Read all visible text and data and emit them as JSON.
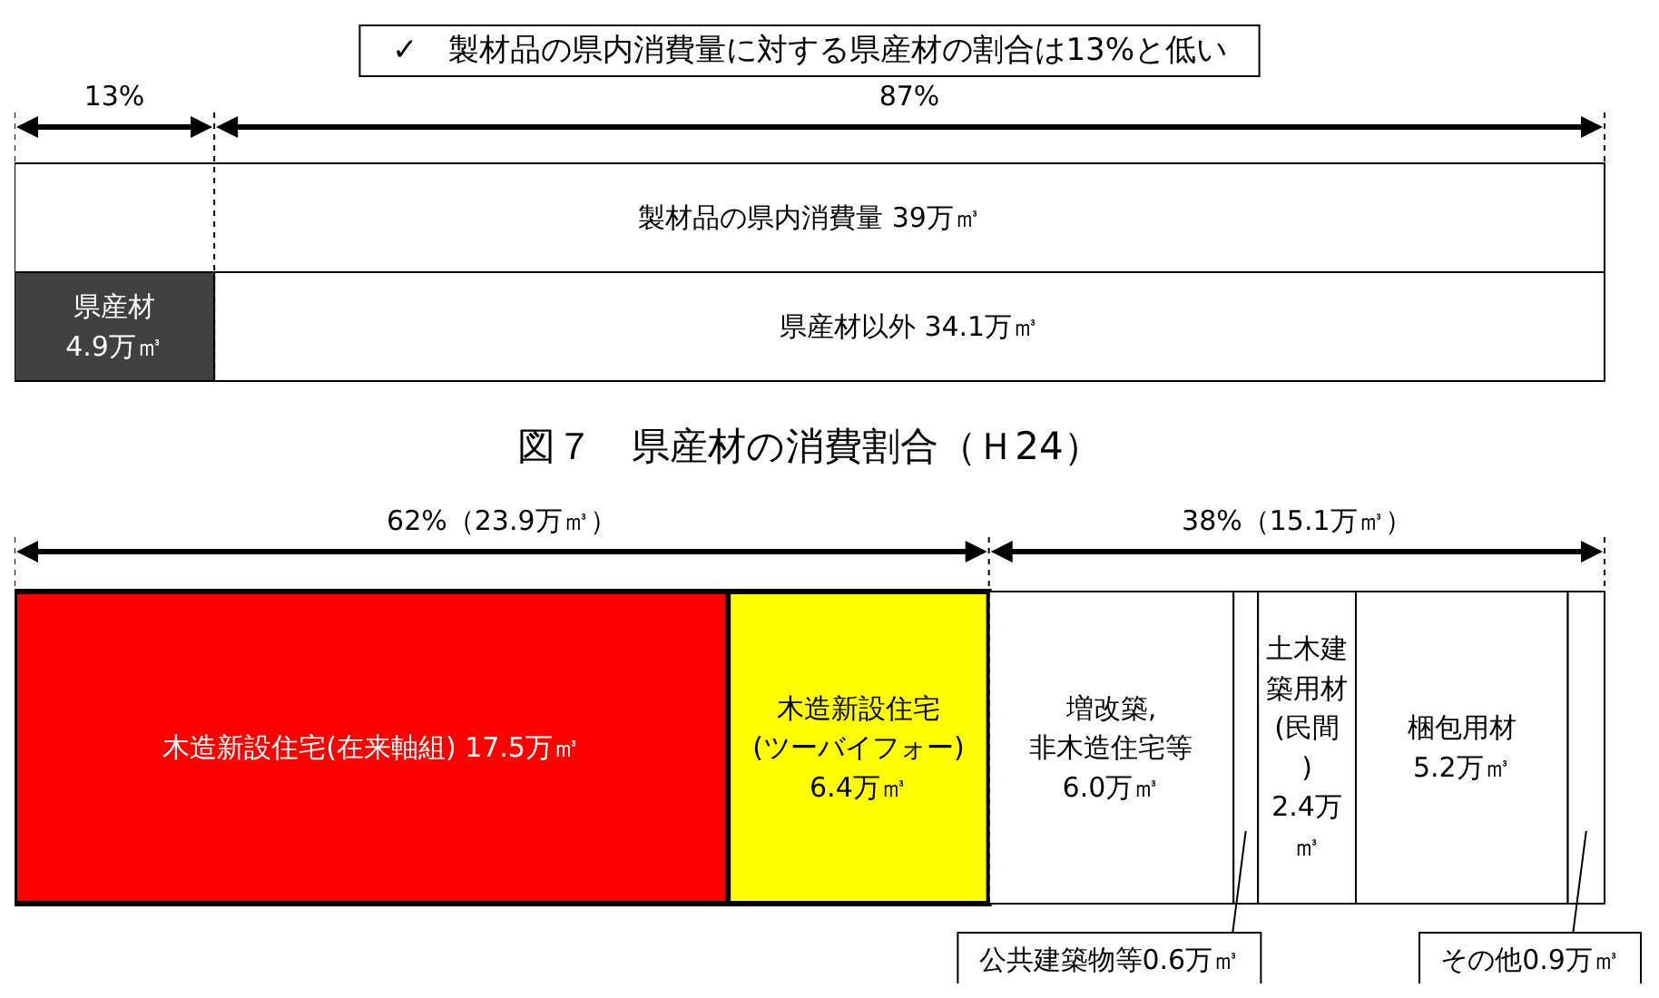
{
  "chart_data": [
    {
      "type": "bar",
      "orientation": "horizontal",
      "stacked": true,
      "title": "✓　製材品の県内消費量に対する県産材の割合は13%と低い",
      "categories": [
        null,
        null
      ],
      "series": [
        {
          "name": "製材品の県内消費量",
          "color": "#ffffff",
          "values": [
            39,
            null
          ],
          "value_labels": [
            "39万㎥",
            null
          ]
        },
        {
          "name": "県産材",
          "color": "#404040",
          "values": [
            null,
            4.9
          ],
          "value_labels": [
            null,
            "4.9万㎥"
          ]
        },
        {
          "name": "県産材以外",
          "color": "#ffffff",
          "values": [
            null,
            34.1
          ],
          "value_labels": [
            null,
            "34.1万㎥"
          ]
        }
      ],
      "ref_lines": [
        {
          "axis": "x",
          "value": 4.9,
          "line_style": "dashed"
        }
      ],
      "annotations": [
        "13%",
        "87%"
      ]
    },
    {
      "type": "bar",
      "orientation": "horizontal",
      "stacked": true,
      "title": "図７　県産材の消費割合（Ｈ24）",
      "categories": [
        null
      ],
      "series": [
        {
          "name": "木造新設住宅(在来軸組)",
          "color": "#ff0000",
          "values": [
            17.5
          ],
          "value_labels": [
            "17.5万㎥"
          ]
        },
        {
          "name": "木造新設住宅(ツーバイフォー)",
          "color": "#ffff00",
          "values": [
            6.4
          ],
          "value_labels": [
            "6.4万㎥"
          ]
        },
        {
          "name": "増改築,非木造住宅等",
          "color": "#ffffff",
          "values": [
            6.0
          ],
          "value_labels": [
            "6.0万㎥"
          ]
        },
        {
          "name": "公共建築物等",
          "color": "#ffffff",
          "values": [
            0.6
          ],
          "value_labels": [
            "0.6万㎥"
          ]
        },
        {
          "name": "土木建築用材(民間)",
          "color": "#ffffff",
          "values": [
            2.4
          ],
          "value_labels": [
            "2.4万㎥"
          ]
        },
        {
          "name": "梱包用材",
          "color": "#ffffff",
          "values": [
            5.2
          ],
          "value_labels": [
            "5.2万㎥"
          ]
        },
        {
          "name": "その他",
          "color": "#ffffff",
          "values": [
            0.9
          ],
          "value_labels": [
            "0.9万㎥"
          ]
        }
      ],
      "ref_lines": [
        {
          "axis": "x",
          "value": 23.9,
          "line_style": "dashed"
        }
      ],
      "annotations": [
        "62%（23.9万㎥）",
        "38%（15.1万㎥）"
      ]
    }
  ]
}
